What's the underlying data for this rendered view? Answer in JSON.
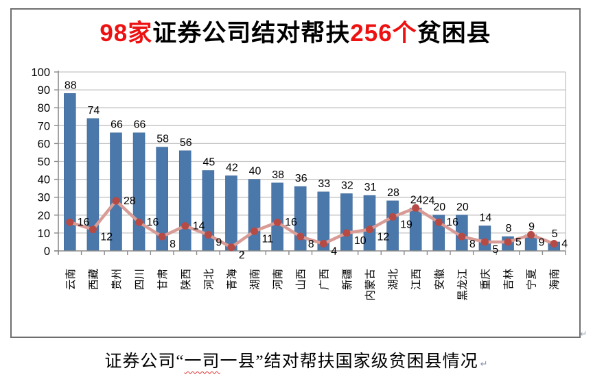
{
  "title": {
    "segments": [
      {
        "text": "98家",
        "color": "#ee1111"
      },
      {
        "text": "证券公司结对帮扶",
        "color": "#000000"
      },
      {
        "text": "256个",
        "color": "#ee1111"
      },
      {
        "text": "贫困县",
        "color": "#000000"
      }
    ]
  },
  "caption": {
    "prefix": "证券公司“",
    "highlight": "一司",
    "suffix": "一县”结对帮扶国家级贫困县情况",
    "paragraph_mark": "↵"
  },
  "frame_paragraph_mark": "↵",
  "chart_data": {
    "type": "bar",
    "title": "98家证券公司结对帮扶256个贫困县",
    "categories": [
      "云南",
      "西藏",
      "贵州",
      "四川",
      "甘肃",
      "陕西",
      "河北",
      "青海",
      "湖南",
      "河南",
      "山西",
      "广西",
      "新疆",
      "内蒙古",
      "湖北",
      "江西",
      "安徽",
      "黑龙江",
      "重庆",
      "吉林",
      "宁夏",
      "海南"
    ],
    "series": [
      {
        "id": "bars",
        "type": "bar",
        "values": [
          88,
          74,
          66,
          66,
          58,
          56,
          45,
          42,
          40,
          38,
          36,
          33,
          32,
          31,
          28,
          24,
          20,
          20,
          14,
          8,
          9,
          5
        ]
      },
      {
        "id": "line",
        "type": "line",
        "values": [
          16,
          12,
          28,
          16,
          8,
          14,
          9,
          2,
          11,
          16,
          8,
          4,
          10,
          12,
          19,
          24,
          16,
          8,
          5,
          5,
          9,
          4
        ]
      }
    ],
    "xlabel": "",
    "ylabel": "",
    "ylim": [
      0,
      100
    ],
    "yticks": [
      0,
      10,
      20,
      30,
      40,
      50,
      60,
      70,
      80,
      90,
      100
    ],
    "grid": true,
    "legend": "none",
    "data_labels": true,
    "line_label_pos": [
      "r",
      "br",
      "r",
      "r",
      "br",
      "r",
      "br",
      "br",
      "br",
      "r",
      "br",
      "br",
      "br",
      "br",
      "br",
      "tr",
      "r",
      "br",
      "br",
      "r",
      "br",
      "r"
    ],
    "colors": {
      "bar": "#4a78ab",
      "bar_edge": "#40699a",
      "line": "#d99b95",
      "marker": "#b64a45",
      "grid": "#c3c3c3",
      "axis": "#8a8a8a",
      "label_text": "#000000"
    }
  }
}
